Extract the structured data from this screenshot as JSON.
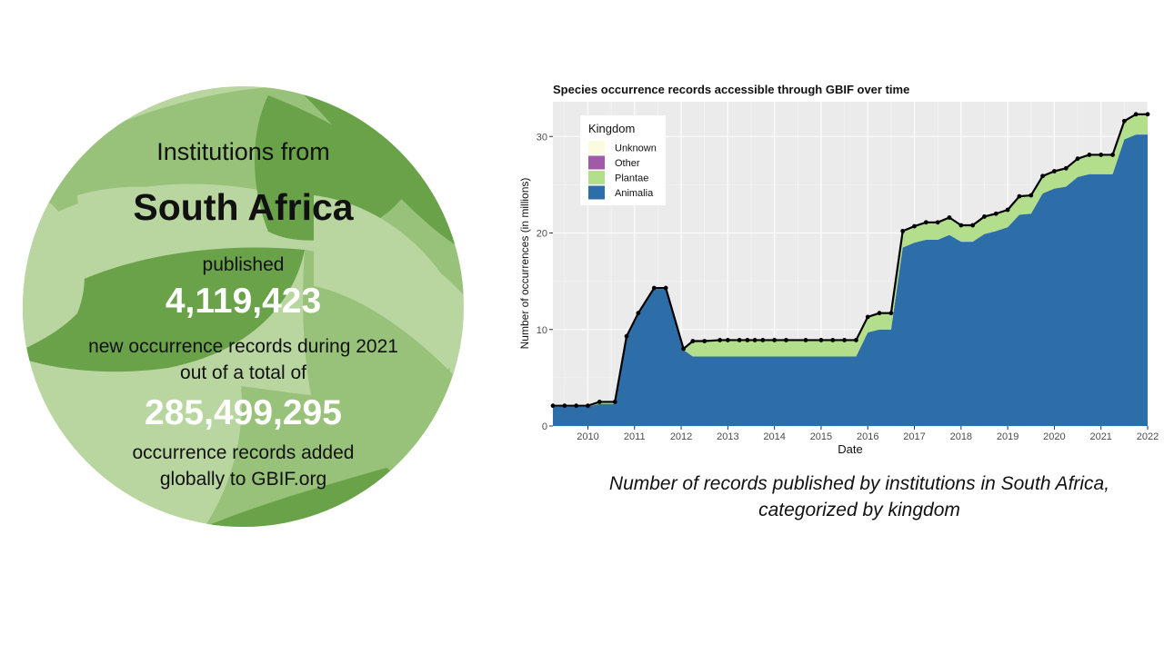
{
  "infographic": {
    "intro": "Institutions from",
    "country": "South Africa",
    "published_label": "published",
    "new_records": "4,119,423",
    "new_records_desc": "new occurrence records during 2021",
    "out_of_total": "out of a total of",
    "total_records": "285,499,295",
    "total_desc_line1": "occurrence records added",
    "total_desc_line2": "globally to GBIF.org",
    "colors": {
      "light": "#b9d6a1",
      "medium": "#98c17a",
      "dark": "#6aa24a"
    }
  },
  "chart_data": {
    "type": "area",
    "title": "Species occurrence records accessible through GBIF over time",
    "xlabel": "Date",
    "ylabel": "Number of occurrences (in millions)",
    "xlim": [
      2009.25,
      2022.0
    ],
    "ylim": [
      0,
      33.6
    ],
    "x_ticks": [
      "2010",
      "2011",
      "2012",
      "2013",
      "2014",
      "2015",
      "2016",
      "2017",
      "2018",
      "2019",
      "2020",
      "2021",
      "2022"
    ],
    "y_ticks": [
      "0",
      "10",
      "20",
      "30"
    ],
    "grid": true,
    "stacked": true,
    "legend": {
      "title": "Kingdom",
      "position": "top-left",
      "entries": [
        "Unknown",
        "Other",
        "Plantae",
        "Animalia"
      ]
    },
    "x": [
      2009.25,
      2009.5,
      2009.75,
      2010.0,
      2010.25,
      2010.58,
      2010.83,
      2011.08,
      2011.42,
      2011.67,
      2012.05,
      2012.25,
      2012.5,
      2012.83,
      2013.0,
      2013.25,
      2013.42,
      2013.58,
      2013.75,
      2014.0,
      2014.25,
      2014.67,
      2015.0,
      2015.25,
      2015.5,
      2015.75,
      2016.0,
      2016.25,
      2016.5,
      2016.75,
      2017.0,
      2017.25,
      2017.5,
      2017.75,
      2018.0,
      2018.25,
      2018.5,
      2018.75,
      2019.0,
      2019.25,
      2019.5,
      2019.75,
      2020.0,
      2020.25,
      2020.5,
      2020.75,
      2021.0,
      2021.25,
      2021.5,
      2021.75,
      2022.0
    ],
    "series": [
      {
        "name": "Animalia",
        "color": "#2e6ea8",
        "values": [
          2.0,
          2.0,
          2.0,
          2.0,
          2.3,
          2.3,
          9.2,
          11.6,
          14.2,
          14.2,
          7.9,
          7.2,
          7.2,
          7.2,
          7.2,
          7.2,
          7.2,
          7.2,
          7.2,
          7.2,
          7.2,
          7.2,
          7.2,
          7.2,
          7.2,
          7.2,
          9.7,
          10.0,
          10.0,
          18.5,
          19.0,
          19.3,
          19.3,
          19.8,
          19.1,
          19.1,
          19.9,
          20.2,
          20.6,
          21.9,
          22.0,
          24.1,
          24.6,
          24.8,
          25.8,
          26.1,
          26.1,
          26.1,
          29.7,
          30.2,
          30.2
        ]
      },
      {
        "name": "Plantae",
        "color": "#b3de8c",
        "values": [
          0.1,
          0.1,
          0.1,
          0.1,
          0.2,
          0.2,
          0.1,
          0.1,
          0.1,
          0.1,
          0.1,
          1.6,
          1.6,
          1.7,
          1.7,
          1.7,
          1.7,
          1.7,
          1.7,
          1.7,
          1.7,
          1.7,
          1.7,
          1.7,
          1.7,
          1.7,
          1.6,
          1.7,
          1.7,
          1.7,
          1.7,
          1.8,
          1.8,
          1.8,
          1.7,
          1.7,
          1.8,
          1.8,
          1.8,
          1.9,
          1.9,
          1.8,
          1.8,
          1.9,
          1.9,
          2.0,
          2.0,
          2.0,
          1.9,
          2.1,
          2.1
        ]
      },
      {
        "name": "Other",
        "color": "#a05ba8",
        "values": [
          0,
          0,
          0,
          0,
          0,
          0,
          0,
          0,
          0,
          0,
          0,
          0,
          0,
          0,
          0,
          0,
          0,
          0,
          0,
          0,
          0,
          0,
          0,
          0,
          0,
          0,
          0,
          0,
          0,
          0,
          0,
          0,
          0,
          0,
          0,
          0,
          0,
          0,
          0,
          0,
          0,
          0,
          0,
          0,
          0,
          0,
          0,
          0,
          0,
          0,
          0
        ]
      },
      {
        "name": "Unknown",
        "color": "#fbfbe0",
        "values": [
          0,
          0,
          0,
          0,
          0,
          0,
          0,
          0,
          0,
          0,
          0,
          0,
          0,
          0,
          0,
          0,
          0,
          0,
          0,
          0,
          0,
          0,
          0,
          0,
          0,
          0,
          0,
          0,
          0,
          0,
          0,
          0,
          0,
          0,
          0,
          0,
          0,
          0,
          0,
          0,
          0,
          0,
          0,
          0,
          0,
          0,
          0,
          0,
          0,
          0,
          0
        ]
      }
    ],
    "total": [
      2.1,
      2.1,
      2.1,
      2.1,
      2.5,
      2.5,
      9.3,
      11.7,
      14.3,
      14.3,
      8.0,
      8.8,
      8.8,
      8.9,
      8.9,
      8.9,
      8.9,
      8.9,
      8.9,
      8.9,
      8.9,
      8.9,
      8.9,
      8.9,
      8.9,
      8.9,
      11.3,
      11.7,
      11.7,
      20.2,
      20.7,
      21.1,
      21.1,
      21.6,
      20.8,
      20.8,
      21.7,
      22.0,
      22.4,
      23.8,
      23.9,
      25.9,
      26.4,
      26.7,
      27.7,
      28.1,
      28.1,
      28.1,
      31.6,
      32.3,
      32.3
    ],
    "caption": "Number of records published by institutions in South Africa, categorized by kingdom"
  }
}
